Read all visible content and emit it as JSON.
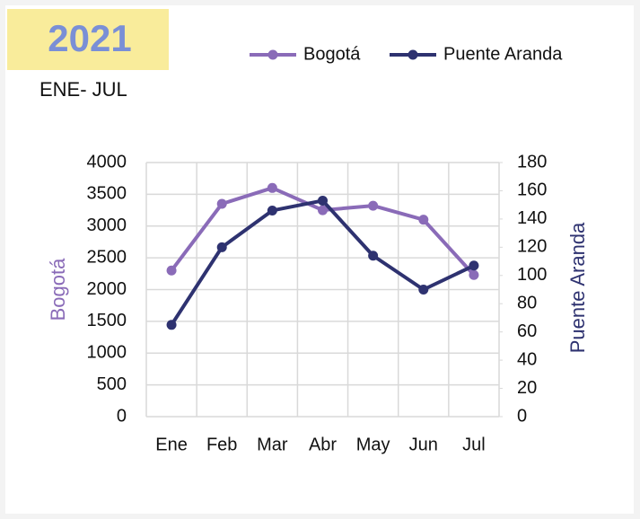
{
  "chart_data": {
    "type": "line",
    "title": "2021",
    "subtitle": "ENE- JUL",
    "categories": [
      "Ene",
      "Feb",
      "Mar",
      "Abr",
      "May",
      "Jun",
      "Jul"
    ],
    "series": [
      {
        "name": "Bogotá",
        "color": "#8a6bb8",
        "values": [
          2300,
          3350,
          3600,
          3250,
          3320,
          3100,
          2230
        ]
      },
      {
        "name": "Puente Aranda",
        "color": "#2e3270",
        "axis": "y2",
        "values": [
          65,
          120,
          146,
          153,
          114,
          90,
          107
        ]
      }
    ],
    "ylabel": "Bogotá",
    "y2label": "Puente Aranda",
    "ylim": [
      0,
      4000
    ],
    "yticks": [
      0,
      500,
      1000,
      1500,
      2000,
      2500,
      3000,
      3500,
      4000
    ],
    "y2lim": [
      0,
      180
    ],
    "y2ticks": [
      0,
      20,
      40,
      60,
      80,
      100,
      120,
      140,
      160,
      180
    ],
    "grid": true,
    "legend": "top"
  }
}
